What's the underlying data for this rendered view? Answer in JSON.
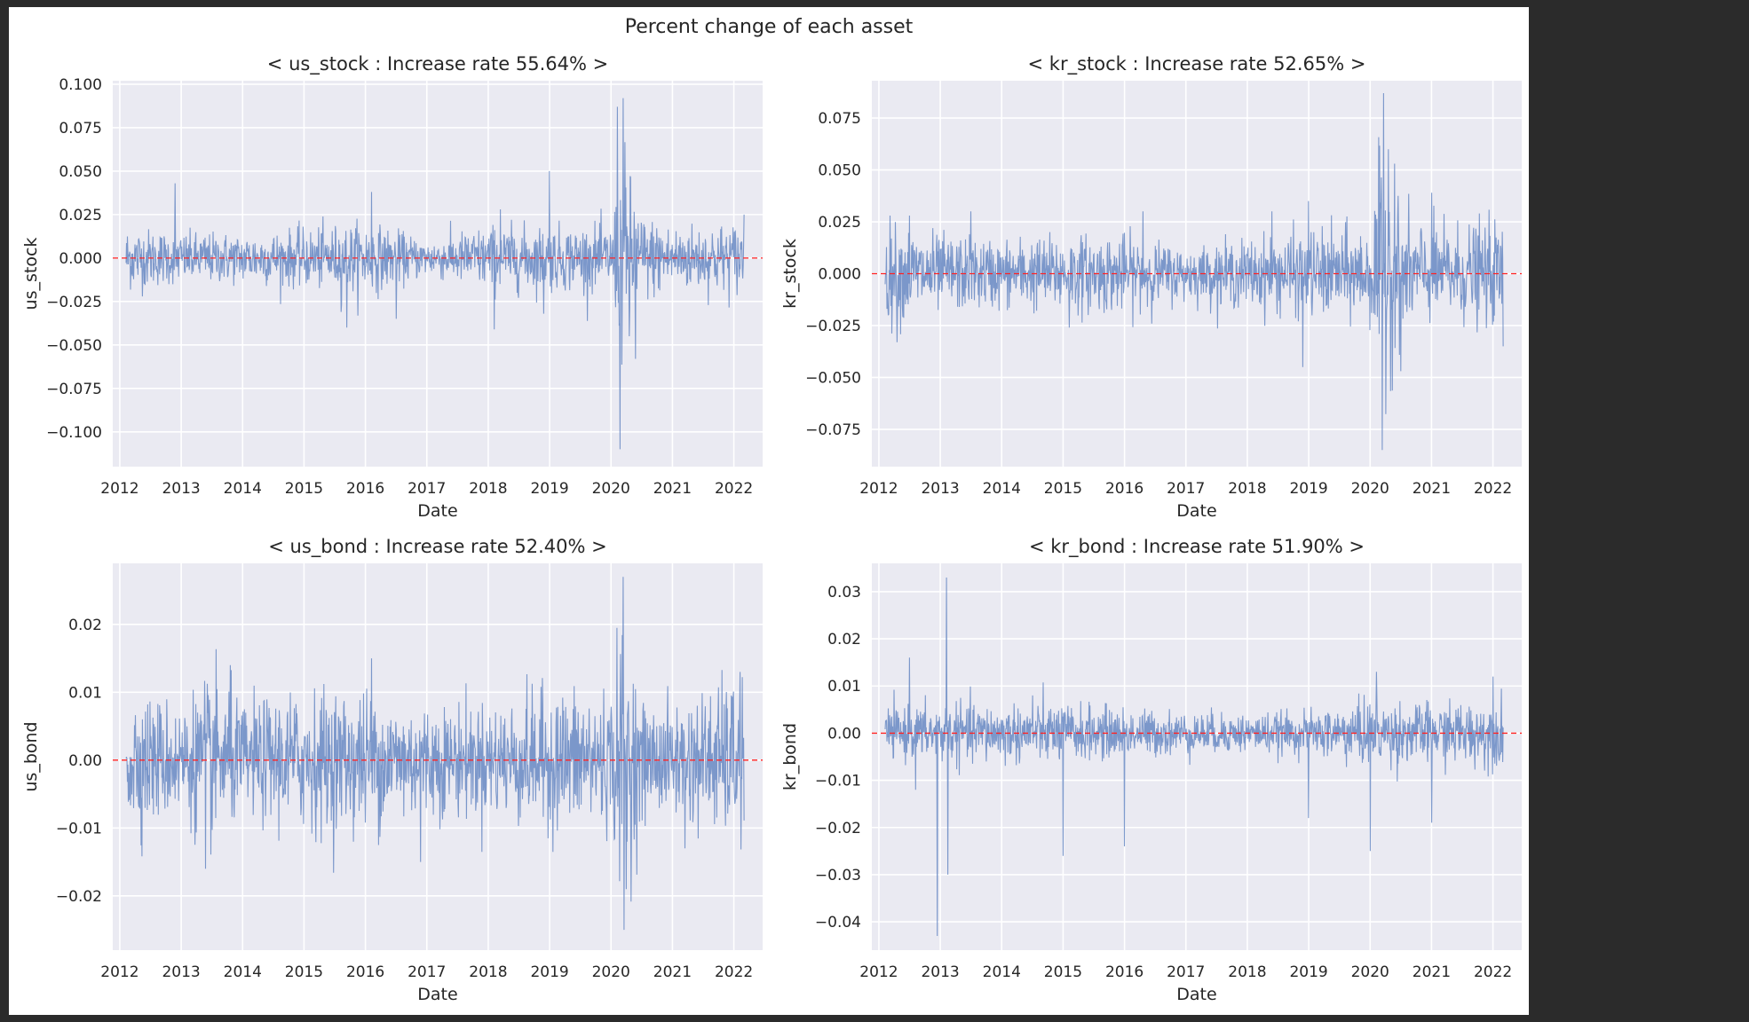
{
  "figure": {
    "title": "Percent change of each asset"
  },
  "chart_data": [
    {
      "type": "line",
      "title": "< us_stock : Increase rate 55.64% >",
      "xlabel": "Date",
      "ylabel": "us_stock",
      "x_range": [
        "2012-02-08",
        "2022-03-01"
      ],
      "xlim": [
        "2011-11-20",
        "2022-06-20"
      ],
      "xticks": [
        "2012",
        "2013",
        "2014",
        "2015",
        "2016",
        "2017",
        "2018",
        "2019",
        "2020",
        "2021",
        "2022"
      ],
      "yticks": [
        0.1,
        0.075,
        0.05,
        0.025,
        0.0,
        -0.025,
        -0.05,
        -0.075,
        -0.1
      ],
      "ytick_labels": [
        "0.100",
        "0.075",
        "0.050",
        "0.025",
        "0.000",
        "−0.025",
        "−0.050",
        "−0.075",
        "−0.100"
      ],
      "ylim": [
        -0.12,
        0.102
      ],
      "zero_line": {
        "value": 0,
        "style": "dashed",
        "color": "#ff2020"
      },
      "series_color": "#5b7fbf",
      "grid": true,
      "volatility": [
        [
          2012.1,
          0.009
        ],
        [
          2013.0,
          0.007
        ],
        [
          2014.0,
          0.007
        ],
        [
          2015.0,
          0.008
        ],
        [
          2016.0,
          0.01
        ],
        [
          2017.0,
          0.005
        ],
        [
          2018.0,
          0.009
        ],
        [
          2019.0,
          0.009
        ],
        [
          2020.0,
          0.009
        ],
        [
          2020.2,
          0.03
        ],
        [
          2020.5,
          0.012
        ],
        [
          2021.0,
          0.009
        ],
        [
          2022.2,
          0.01
        ]
      ],
      "spikes": [
        [
          2012.9,
          0.043
        ],
        [
          2015.6,
          -0.031
        ],
        [
          2015.7,
          -0.04
        ],
        [
          2016.1,
          0.038
        ],
        [
          2016.5,
          -0.035
        ],
        [
          2018.1,
          -0.041
        ],
        [
          2018.2,
          0.028
        ],
        [
          2018.9,
          -0.032
        ],
        [
          2019.0,
          0.05
        ],
        [
          2020.1,
          0.087
        ],
        [
          2020.15,
          -0.11
        ],
        [
          2020.2,
          0.092
        ],
        [
          2020.3,
          -0.045
        ],
        [
          2020.4,
          -0.058
        ],
        [
          2022.2,
          0.025
        ]
      ]
    },
    {
      "type": "line",
      "title": "< kr_stock : Increase rate 52.65% >",
      "xlabel": "Date",
      "ylabel": "kr_stock",
      "x_range": [
        "2012-02-08",
        "2022-03-01"
      ],
      "xlim": [
        "2011-11-20",
        "2022-06-20"
      ],
      "xticks": [
        "2012",
        "2013",
        "2014",
        "2015",
        "2016",
        "2017",
        "2018",
        "2019",
        "2020",
        "2021",
        "2022"
      ],
      "yticks": [
        0.075,
        0.05,
        0.025,
        0.0,
        -0.025,
        -0.05,
        -0.075
      ],
      "ytick_labels": [
        "0.075",
        "0.050",
        "0.025",
        "0.000",
        "−0.025",
        "−0.050",
        "−0.075"
      ],
      "ylim": [
        -0.093,
        0.093
      ],
      "zero_line": {
        "value": 0,
        "style": "dashed",
        "color": "#ff2020"
      },
      "series_color": "#5b7fbf",
      "grid": true,
      "volatility": [
        [
          2012.1,
          0.012
        ],
        [
          2013.0,
          0.009
        ],
        [
          2014.0,
          0.008
        ],
        [
          2015.0,
          0.009
        ],
        [
          2016.0,
          0.009
        ],
        [
          2017.0,
          0.006
        ],
        [
          2018.0,
          0.008
        ],
        [
          2019.0,
          0.01
        ],
        [
          2020.0,
          0.011
        ],
        [
          2020.2,
          0.03
        ],
        [
          2020.5,
          0.014
        ],
        [
          2021.0,
          0.011
        ],
        [
          2022.2,
          0.012
        ]
      ],
      "spikes": [
        [
          2012.3,
          -0.033
        ],
        [
          2012.5,
          0.028
        ],
        [
          2013.5,
          0.03
        ],
        [
          2015.1,
          -0.026
        ],
        [
          2016.3,
          0.03
        ],
        [
          2018.4,
          0.03
        ],
        [
          2018.9,
          -0.045
        ],
        [
          2019.0,
          0.035
        ],
        [
          2020.2,
          -0.085
        ],
        [
          2020.22,
          0.087
        ],
        [
          2020.3,
          0.06
        ],
        [
          2020.4,
          0.053
        ],
        [
          2020.5,
          -0.047
        ],
        [
          2021.0,
          0.039
        ],
        [
          2022.2,
          -0.035
        ]
      ]
    },
    {
      "type": "line",
      "title": "< us_bond : Increase rate 52.40% >",
      "xlabel": "Date",
      "ylabel": "us_bond",
      "x_range": [
        "2012-02-08",
        "2022-03-01"
      ],
      "xlim": [
        "2011-11-20",
        "2022-06-20"
      ],
      "xticks": [
        "2012",
        "2013",
        "2014",
        "2015",
        "2016",
        "2017",
        "2018",
        "2019",
        "2020",
        "2021",
        "2022"
      ],
      "yticks": [
        0.02,
        0.01,
        0.0,
        -0.01,
        -0.02
      ],
      "ytick_labels": [
        "0.02",
        "0.01",
        "0.00",
        "−0.01",
        "−0.02"
      ],
      "ylim": [
        -0.028,
        0.029
      ],
      "zero_line": {
        "value": 0,
        "style": "dashed",
        "color": "#ff2020"
      },
      "series_color": "#5b7fbf",
      "grid": true,
      "volatility": [
        [
          2012.1,
          0.005
        ],
        [
          2013.0,
          0.004
        ],
        [
          2013.5,
          0.006
        ],
        [
          2014.0,
          0.004
        ],
        [
          2015.0,
          0.005
        ],
        [
          2016.0,
          0.005
        ],
        [
          2017.0,
          0.004
        ],
        [
          2018.0,
          0.004
        ],
        [
          2019.0,
          0.005
        ],
        [
          2020.0,
          0.005
        ],
        [
          2020.2,
          0.01
        ],
        [
          2020.5,
          0.004
        ],
        [
          2021.0,
          0.004
        ],
        [
          2022.2,
          0.006
        ]
      ],
      "spikes": [
        [
          2013.4,
          -0.016
        ],
        [
          2013.8,
          0.014
        ],
        [
          2016.1,
          0.015
        ],
        [
          2016.9,
          -0.015
        ],
        [
          2020.2,
          0.027
        ],
        [
          2020.21,
          -0.025
        ],
        [
          2020.25,
          -0.019
        ],
        [
          2021.2,
          -0.013
        ],
        [
          2022.1,
          0.013
        ]
      ]
    },
    {
      "type": "line",
      "title": "< kr_bond : Increase rate 51.90% >",
      "xlabel": "Date",
      "ylabel": "kr_bond",
      "x_range": [
        "2012-02-08",
        "2022-03-01"
      ],
      "xlim": [
        "2011-11-20",
        "2022-06-20"
      ],
      "xticks": [
        "2012",
        "2013",
        "2014",
        "2015",
        "2016",
        "2017",
        "2018",
        "2019",
        "2020",
        "2021",
        "2022"
      ],
      "yticks": [
        0.03,
        0.02,
        0.01,
        0.0,
        -0.01,
        -0.02,
        -0.03,
        -0.04
      ],
      "ytick_labels": [
        "0.03",
        "0.02",
        "0.01",
        "0.00",
        "−0.01",
        "−0.02",
        "−0.03",
        "−0.04"
      ],
      "ylim": [
        -0.046,
        0.036
      ],
      "zero_line": {
        "value": 0,
        "style": "dashed",
        "color": "#ff2020"
      },
      "series_color": "#5b7fbf",
      "grid": true,
      "volatility": [
        [
          2012.1,
          0.0025
        ],
        [
          2013.0,
          0.003
        ],
        [
          2014.0,
          0.003
        ],
        [
          2015.0,
          0.003
        ],
        [
          2016.0,
          0.0025
        ],
        [
          2017.0,
          0.0022
        ],
        [
          2018.0,
          0.002
        ],
        [
          2019.0,
          0.0022
        ],
        [
          2020.0,
          0.0035
        ],
        [
          2021.0,
          0.003
        ],
        [
          2022.2,
          0.0035
        ]
      ],
      "spikes": [
        [
          2012.5,
          0.016
        ],
        [
          2012.6,
          -0.012
        ],
        [
          2012.95,
          -0.043
        ],
        [
          2013.1,
          0.033
        ],
        [
          2013.12,
          -0.03
        ],
        [
          2014.5,
          0.008
        ],
        [
          2015.0,
          -0.026
        ],
        [
          2016.0,
          -0.024
        ],
        [
          2019.0,
          -0.018
        ],
        [
          2020.0,
          -0.025
        ],
        [
          2020.1,
          0.013
        ],
        [
          2021.0,
          -0.019
        ],
        [
          2022.0,
          0.012
        ]
      ]
    }
  ]
}
